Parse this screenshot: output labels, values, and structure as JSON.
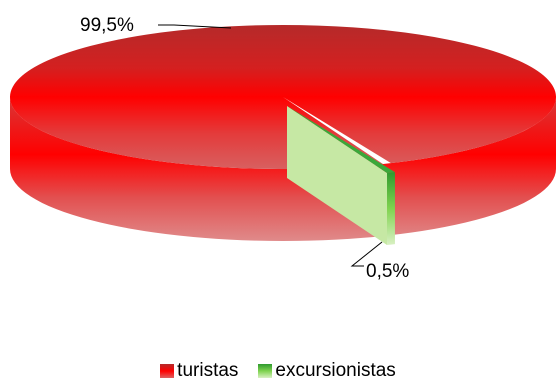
{
  "chart_data": {
    "type": "pie",
    "style": "3d",
    "categories": [
      "turistas",
      "excursionistas"
    ],
    "values": [
      99.5,
      0.5
    ],
    "data_labels": [
      "99,5%",
      "0,5%"
    ],
    "colors": [
      "#ff0000",
      "#66cc33"
    ],
    "title": "",
    "legend_position": "bottom",
    "exploded": [
      "excursionistas"
    ]
  }
}
